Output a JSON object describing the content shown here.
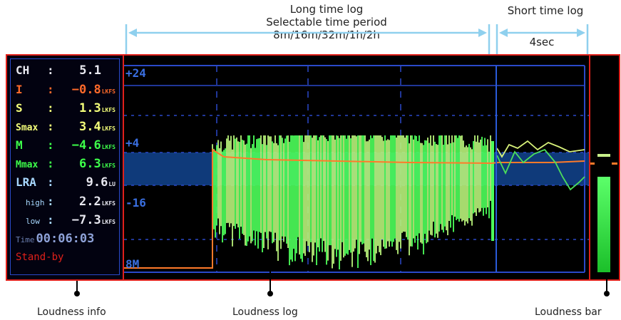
{
  "callouts": {
    "long_log_line1": "Long time log",
    "long_log_line2": "Selectable time period",
    "long_log_line3": "8m/16m/32m/1h/2h",
    "short_log_title": "Short time log",
    "short_log_period": "4sec"
  },
  "info": {
    "rows": [
      {
        "label": "CH",
        "value": "5.1",
        "unit": "",
        "color": "#e8e8f0",
        "label_color": "#e8e8f0"
      },
      {
        "label": "I",
        "value": "−0.8",
        "unit": "LKFS",
        "color": "#ff6a2a",
        "label_color": "#ff6a2a"
      },
      {
        "label": "S",
        "value": "1.3",
        "unit": "LKFS",
        "color": "#f4ff7a",
        "label_color": "#f4ff7a"
      },
      {
        "label": "Smax",
        "value": "3.4",
        "unit": "LKFS",
        "color": "#f4ff7a",
        "label_color": "#f4ff7a"
      },
      {
        "label": "M",
        "value": "−4.6",
        "unit": "LKFS",
        "color": "#3dff4a",
        "label_color": "#3dff4a"
      },
      {
        "label": "Mmax",
        "value": "6.3",
        "unit": "LKFS",
        "color": "#3dff4a",
        "label_color": "#3dff4a"
      },
      {
        "label": "LRA",
        "value": "9.6",
        "unit": "LU",
        "color": "#e8e8f0",
        "label_color": "#a8d8ff"
      },
      {
        "label": "high",
        "value": "2.2",
        "unit": "LKFS",
        "color": "#e8e8f0",
        "label_color": "#a8d8ff"
      },
      {
        "label": "low",
        "value": "−7.3",
        "unit": "LKFS",
        "color": "#e8e8f0",
        "label_color": "#a8d8ff"
      }
    ],
    "time_label": "Time",
    "time_value": "00:06:03",
    "status": "Stand-by"
  },
  "log": {
    "scale_labels": [
      "+24",
      "+4",
      "-16",
      "8M"
    ]
  },
  "bottom_labels": {
    "info": "Loudness info",
    "log": "Loudness log",
    "bar": "Loudness bar"
  },
  "colors": {
    "frame_red": "#e0201a",
    "grid_blue": "#2a49c9",
    "bracket_blue": "#8fd0ee",
    "integrated_orange": "#ff7a2a"
  }
}
